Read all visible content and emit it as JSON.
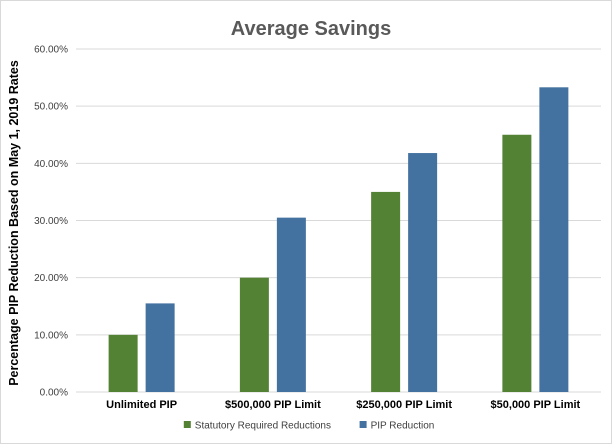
{
  "chart_data": {
    "type": "bar",
    "title": "Average Savings",
    "xlabel": "",
    "ylabel": "Percentage PIP Reduction Based on May 1, 2019 Rates",
    "categories": [
      "Unlimited PIP",
      "$500,000 PIP Limit",
      "$250,000 PIP Limit",
      "$50,000 PIP Limit"
    ],
    "series": [
      {
        "name": "Statutory Required Reductions",
        "values": [
          10,
          20,
          35,
          45
        ],
        "color": "#548235"
      },
      {
        "name": "PIP Reduction",
        "values": [
          15.5,
          30.5,
          41.8,
          53.3
        ],
        "color": "#4472a0"
      }
    ],
    "ylim": [
      0,
      60
    ],
    "yticks": [
      "0.00%",
      "10.00%",
      "20.00%",
      "30.00%",
      "40.00%",
      "50.00%",
      "60.00%"
    ],
    "grid": true,
    "legend_position": "bottom"
  }
}
